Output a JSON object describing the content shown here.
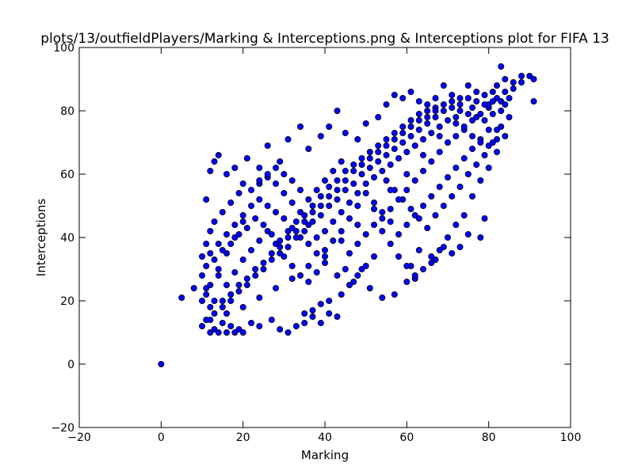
{
  "chart_data": {
    "type": "scatter",
    "title": "plots/13/outfieldPlayers/Marking & Interceptions.png & Interceptions plot for FIFA 13",
    "xlabel": "Marking",
    "ylabel": "Interceptions",
    "xlim": [
      -20,
      100
    ],
    "ylim": [
      -20,
      100
    ],
    "xticks": [
      -20,
      0,
      20,
      40,
      60,
      80,
      100
    ],
    "yticks": [
      -20,
      0,
      20,
      40,
      60,
      80,
      100
    ],
    "grid": false,
    "legend": "none",
    "marker_color": "#0000ff",
    "marker_edge": "#000000",
    "points": [
      [
        0,
        0
      ],
      [
        5,
        21
      ],
      [
        8,
        24
      ],
      [
        10,
        12
      ],
      [
        11,
        14
      ],
      [
        12,
        10
      ],
      [
        13,
        11
      ],
      [
        14,
        10
      ],
      [
        15,
        13
      ],
      [
        16,
        10
      ],
      [
        17,
        12
      ],
      [
        18,
        10
      ],
      [
        19,
        11
      ],
      [
        20,
        10
      ],
      [
        22,
        13
      ],
      [
        24,
        12
      ],
      [
        27,
        14
      ],
      [
        29,
        11
      ],
      [
        31,
        10
      ],
      [
        33,
        12
      ],
      [
        35,
        13
      ],
      [
        37,
        15
      ],
      [
        39,
        13
      ],
      [
        41,
        16
      ],
      [
        43,
        15
      ],
      [
        10,
        20
      ],
      [
        12,
        25
      ],
      [
        14,
        30
      ],
      [
        16,
        35
      ],
      [
        18,
        40
      ],
      [
        20,
        45
      ],
      [
        11,
        52
      ],
      [
        12,
        61
      ],
      [
        13,
        64
      ],
      [
        14,
        66
      ],
      [
        16,
        60
      ],
      [
        18,
        62
      ],
      [
        21,
        65
      ],
      [
        24,
        62
      ],
      [
        26,
        69
      ],
      [
        29,
        64
      ],
      [
        31,
        71
      ],
      [
        34,
        75
      ],
      [
        36,
        68
      ],
      [
        39,
        72
      ],
      [
        41,
        75
      ],
      [
        43,
        80
      ],
      [
        45,
        73
      ],
      [
        48,
        71
      ],
      [
        50,
        76
      ],
      [
        53,
        78
      ],
      [
        55,
        82
      ],
      [
        57,
        85
      ],
      [
        59,
        84
      ],
      [
        61,
        86
      ],
      [
        63,
        83
      ],
      [
        65,
        82
      ],
      [
        67,
        84
      ],
      [
        69,
        88
      ],
      [
        71,
        85
      ],
      [
        73,
        84
      ],
      [
        75,
        88
      ],
      [
        77,
        86
      ],
      [
        79,
        85
      ],
      [
        81,
        86
      ],
      [
        82,
        88
      ],
      [
        83,
        94
      ],
      [
        84,
        90
      ],
      [
        86,
        89
      ],
      [
        88,
        91
      ],
      [
        90,
        91
      ],
      [
        91,
        90
      ],
      [
        91,
        83
      ],
      [
        84,
        72
      ],
      [
        82,
        67
      ],
      [
        80,
        62
      ],
      [
        78,
        58
      ],
      [
        76,
        53
      ],
      [
        74,
        47
      ],
      [
        72,
        44
      ],
      [
        70,
        40
      ],
      [
        68,
        36
      ],
      [
        66,
        34
      ],
      [
        64,
        30
      ],
      [
        62,
        27
      ],
      [
        60,
        31
      ],
      [
        58,
        34
      ],
      [
        56,
        38
      ],
      [
        54,
        42
      ],
      [
        52,
        34
      ],
      [
        50,
        31
      ],
      [
        48,
        28
      ],
      [
        46,
        25
      ],
      [
        44,
        22
      ],
      [
        41,
        20
      ],
      [
        39,
        19
      ],
      [
        37,
        17
      ],
      [
        35,
        16
      ],
      [
        61,
        31
      ],
      [
        63,
        36
      ],
      [
        67,
        33
      ],
      [
        71,
        35
      ],
      [
        73,
        37
      ],
      [
        78,
        40
      ],
      [
        79,
        46
      ],
      [
        75,
        41
      ],
      [
        69,
        37
      ],
      [
        66,
        32
      ],
      [
        62,
        28
      ],
      [
        60,
        26
      ],
      [
        57,
        22
      ],
      [
        54,
        21
      ],
      [
        51,
        24
      ],
      [
        49,
        30
      ],
      [
        47,
        26
      ],
      [
        45,
        30
      ],
      [
        43,
        28
      ],
      [
        40,
        32
      ],
      [
        38,
        35
      ],
      [
        36,
        38
      ],
      [
        34,
        40
      ],
      [
        32,
        43
      ],
      [
        30,
        46
      ],
      [
        28,
        48
      ],
      [
        26,
        50
      ],
      [
        24,
        52
      ],
      [
        22,
        55
      ],
      [
        20,
        57
      ],
      [
        19,
        54
      ],
      [
        17,
        51
      ],
      [
        15,
        48
      ],
      [
        13,
        45
      ],
      [
        12,
        42
      ],
      [
        11,
        38
      ],
      [
        10,
        34
      ],
      [
        10,
        28
      ],
      [
        11,
        24
      ],
      [
        12,
        18
      ],
      [
        13,
        16
      ],
      [
        15,
        18
      ],
      [
        17,
        20
      ],
      [
        19,
        23
      ],
      [
        21,
        25
      ],
      [
        23,
        28
      ],
      [
        25,
        30
      ],
      [
        27,
        33
      ],
      [
        29,
        35
      ],
      [
        31,
        37
      ],
      [
        33,
        40
      ],
      [
        35,
        42
      ],
      [
        37,
        45
      ],
      [
        39,
        47
      ],
      [
        41,
        50
      ],
      [
        43,
        52
      ],
      [
        45,
        55
      ],
      [
        47,
        57
      ],
      [
        49,
        60
      ],
      [
        51,
        62
      ],
      [
        53,
        64
      ],
      [
        55,
        66
      ],
      [
        57,
        68
      ],
      [
        59,
        70
      ],
      [
        61,
        72
      ],
      [
        63,
        74
      ],
      [
        65,
        76
      ],
      [
        67,
        78
      ],
      [
        69,
        80
      ],
      [
        71,
        81
      ],
      [
        73,
        80
      ],
      [
        75,
        79
      ],
      [
        77,
        78
      ],
      [
        79,
        77
      ],
      [
        81,
        79
      ],
      [
        83,
        80
      ],
      [
        80,
        74
      ],
      [
        78,
        71
      ],
      [
        76,
        68
      ],
      [
        74,
        65
      ],
      [
        72,
        62
      ],
      [
        70,
        59
      ],
      [
        68,
        56
      ],
      [
        66,
        53
      ],
      [
        64,
        50
      ],
      [
        62,
        47
      ],
      [
        60,
        44
      ],
      [
        58,
        41
      ],
      [
        56,
        45
      ],
      [
        54,
        48
      ],
      [
        52,
        51
      ],
      [
        50,
        54
      ],
      [
        48,
        50
      ],
      [
        46,
        46
      ],
      [
        44,
        42
      ],
      [
        42,
        39
      ],
      [
        40,
        36
      ],
      [
        38,
        40
      ],
      [
        36,
        44
      ],
      [
        34,
        48
      ],
      [
        32,
        51
      ],
      [
        30,
        54
      ],
      [
        28,
        57
      ],
      [
        26,
        59
      ],
      [
        24,
        57
      ],
      [
        22,
        50
      ],
      [
        20,
        47
      ],
      [
        18,
        44
      ],
      [
        16,
        41
      ],
      [
        14,
        38
      ],
      [
        12,
        35
      ],
      [
        14,
        28
      ],
      [
        16,
        25
      ],
      [
        18,
        29
      ],
      [
        20,
        33
      ],
      [
        22,
        36
      ],
      [
        24,
        39
      ],
      [
        26,
        42
      ],
      [
        28,
        38
      ],
      [
        30,
        34
      ],
      [
        32,
        31
      ],
      [
        34,
        28
      ],
      [
        36,
        26
      ],
      [
        38,
        29
      ],
      [
        40,
        42
      ],
      [
        42,
        45
      ],
      [
        44,
        48
      ],
      [
        46,
        51
      ],
      [
        48,
        54
      ],
      [
        50,
        57
      ],
      [
        52,
        59
      ],
      [
        54,
        61
      ],
      [
        56,
        63
      ],
      [
        58,
        65
      ],
      [
        60,
        67
      ],
      [
        62,
        69
      ],
      [
        64,
        71
      ],
      [
        66,
        73
      ],
      [
        68,
        75
      ],
      [
        70,
        77
      ],
      [
        72,
        76
      ],
      [
        74,
        74
      ],
      [
        76,
        72
      ],
      [
        78,
        70
      ],
      [
        80,
        69
      ],
      [
        82,
        71
      ],
      [
        83,
        75
      ],
      [
        85,
        78
      ],
      [
        84,
        82
      ],
      [
        80,
        81
      ],
      [
        76,
        81
      ],
      [
        72,
        78
      ],
      [
        68,
        72
      ],
      [
        64,
        66
      ],
      [
        60,
        60
      ],
      [
        56,
        55
      ],
      [
        52,
        49
      ],
      [
        48,
        44
      ],
      [
        44,
        39
      ],
      [
        40,
        34
      ],
      [
        36,
        31
      ],
      [
        32,
        27
      ],
      [
        28,
        24
      ],
      [
        24,
        21
      ],
      [
        20,
        18
      ],
      [
        16,
        16
      ],
      [
        12,
        14
      ],
      [
        11,
        31
      ],
      [
        13,
        33
      ],
      [
        15,
        36
      ],
      [
        17,
        38
      ],
      [
        19,
        41
      ],
      [
        21,
        43
      ],
      [
        23,
        46
      ],
      [
        25,
        44
      ],
      [
        27,
        41
      ],
      [
        29,
        39
      ],
      [
        31,
        42
      ],
      [
        33,
        45
      ],
      [
        35,
        47
      ],
      [
        37,
        50
      ],
      [
        39,
        53
      ],
      [
        41,
        56
      ],
      [
        43,
        58
      ],
      [
        45,
        61
      ],
      [
        47,
        63
      ],
      [
        49,
        65
      ],
      [
        51,
        67
      ],
      [
        53,
        69
      ],
      [
        55,
        71
      ],
      [
        57,
        73
      ],
      [
        59,
        75
      ],
      [
        61,
        77
      ],
      [
        63,
        79
      ],
      [
        65,
        80
      ],
      [
        67,
        81
      ],
      [
        55,
        58
      ],
      [
        57,
        55
      ],
      [
        59,
        52
      ],
      [
        61,
        49
      ],
      [
        63,
        46
      ],
      [
        65,
        43
      ],
      [
        67,
        47
      ],
      [
        69,
        50
      ],
      [
        71,
        53
      ],
      [
        73,
        56
      ],
      [
        75,
        60
      ],
      [
        77,
        63
      ],
      [
        79,
        66
      ],
      [
        81,
        70
      ],
      [
        82,
        74
      ],
      [
        44,
        64
      ],
      [
        42,
        61
      ],
      [
        40,
        58
      ],
      [
        38,
        55
      ],
      [
        36,
        52
      ],
      [
        34,
        55
      ],
      [
        32,
        58
      ],
      [
        30,
        60
      ],
      [
        28,
        62
      ],
      [
        26,
        60
      ],
      [
        24,
        58
      ],
      [
        46,
        35
      ],
      [
        48,
        38
      ],
      [
        50,
        41
      ],
      [
        52,
        44
      ],
      [
        54,
        46
      ],
      [
        56,
        49
      ],
      [
        58,
        52
      ],
      [
        60,
        55
      ],
      [
        62,
        58
      ],
      [
        64,
        61
      ],
      [
        66,
        64
      ],
      [
        68,
        67
      ],
      [
        70,
        70
      ],
      [
        72,
        72
      ],
      [
        74,
        75
      ],
      [
        76,
        77
      ],
      [
        78,
        79
      ],
      [
        80,
        82
      ],
      [
        82,
        84
      ],
      [
        84,
        86
      ],
      [
        86,
        87
      ],
      [
        88,
        89
      ],
      [
        85,
        84
      ],
      [
        83,
        83
      ],
      [
        81,
        83
      ],
      [
        79,
        82
      ],
      [
        77,
        83
      ],
      [
        75,
        84
      ],
      [
        73,
        82
      ],
      [
        71,
        83
      ],
      [
        69,
        82
      ],
      [
        67,
        80
      ],
      [
        65,
        78
      ],
      [
        63,
        77
      ],
      [
        61,
        75
      ],
      [
        59,
        73
      ],
      [
        57,
        71
      ],
      [
        55,
        69
      ],
      [
        53,
        67
      ],
      [
        51,
        65
      ],
      [
        49,
        63
      ],
      [
        47,
        61
      ],
      [
        45,
        58
      ],
      [
        43,
        55
      ],
      [
        41,
        53
      ],
      [
        39,
        50
      ],
      [
        37,
        48
      ],
      [
        35,
        45
      ],
      [
        33,
        42
      ],
      [
        31,
        40
      ],
      [
        29,
        37
      ],
      [
        27,
        35
      ],
      [
        25,
        32
      ],
      [
        23,
        30
      ],
      [
        21,
        27
      ],
      [
        19,
        25
      ],
      [
        17,
        22
      ],
      [
        15,
        20
      ],
      [
        13,
        20
      ],
      [
        11,
        22
      ]
    ]
  }
}
